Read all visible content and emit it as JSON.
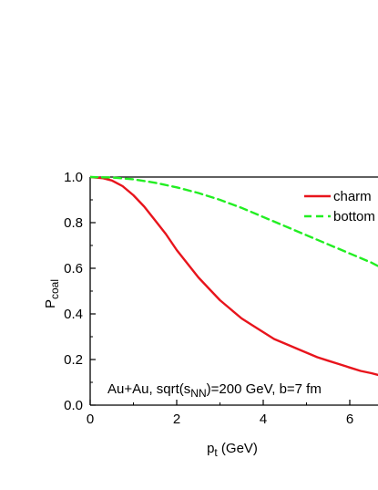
{
  "chart_data": {
    "type": "line",
    "xlabel_main": "p",
    "xlabel_sub": "t",
    "xlabel_unit": " (GeV)",
    "ylabel_main": "P",
    "ylabel_sub": "coal",
    "xlim": [
      0,
      6.7
    ],
    "ylim": [
      0,
      1.0
    ],
    "x_ticks": [
      {
        "value": 0,
        "label": "0"
      },
      {
        "value": 2,
        "label": "2"
      },
      {
        "value": 4,
        "label": "4"
      },
      {
        "value": 6,
        "label": "6"
      }
    ],
    "y_ticks": [
      {
        "value": 0.0,
        "label": "0.0"
      },
      {
        "value": 0.2,
        "label": "0.2"
      },
      {
        "value": 0.4,
        "label": "0.4"
      },
      {
        "value": 0.6,
        "label": "0.6"
      },
      {
        "value": 0.8,
        "label": "0.8"
      },
      {
        "value": 1.0,
        "label": "1.0"
      }
    ],
    "annotation": {
      "prefix": "Au+Au, sqrt(s",
      "sub": "NN",
      "suffix": ")=200 GeV, b=7 fm"
    },
    "legend_position": "top-right",
    "series": [
      {
        "name": "charm",
        "color": "#e8141c",
        "dash": "solid",
        "x": [
          0,
          0.3,
          0.5,
          0.75,
          1.0,
          1.25,
          1.5,
          1.75,
          2.0,
          2.25,
          2.5,
          2.75,
          3.0,
          3.25,
          3.5,
          3.75,
          4.0,
          4.25,
          4.5,
          4.75,
          5.0,
          5.25,
          5.5,
          5.75,
          6.0,
          6.25,
          6.5,
          6.7
        ],
        "y": [
          1.0,
          0.995,
          0.985,
          0.96,
          0.92,
          0.87,
          0.81,
          0.75,
          0.68,
          0.62,
          0.56,
          0.51,
          0.46,
          0.42,
          0.38,
          0.35,
          0.32,
          0.29,
          0.27,
          0.25,
          0.23,
          0.21,
          0.195,
          0.18,
          0.165,
          0.15,
          0.14,
          0.13
        ]
      },
      {
        "name": "bottom",
        "color": "#22ee22",
        "dash": "dashed",
        "x": [
          0,
          0.5,
          1.0,
          1.5,
          2.0,
          2.5,
          3.0,
          3.5,
          4.0,
          4.5,
          5.0,
          5.5,
          6.0,
          6.5,
          6.7
        ],
        "y": [
          1.0,
          0.998,
          0.99,
          0.975,
          0.955,
          0.93,
          0.9,
          0.865,
          0.825,
          0.785,
          0.745,
          0.705,
          0.665,
          0.625,
          0.605
        ]
      }
    ]
  }
}
